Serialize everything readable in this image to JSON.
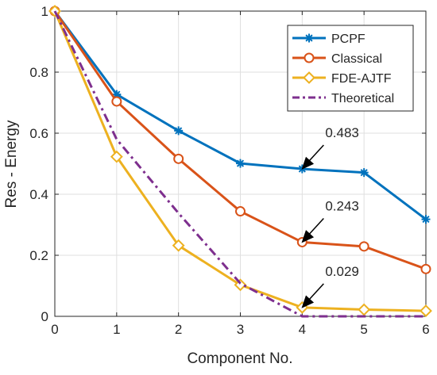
{
  "chart_data": {
    "type": "line",
    "title": "",
    "xlabel": "Component No.",
    "ylabel": "Res - Energy",
    "xlim": [
      0,
      6
    ],
    "ylim": [
      0,
      1
    ],
    "grid": true,
    "legend_position": "top-right",
    "x": [
      0,
      1,
      2,
      3,
      4,
      5,
      6
    ],
    "x_ticks": [
      "0",
      "1",
      "2",
      "3",
      "4",
      "5",
      "6"
    ],
    "y_ticks": [
      "0",
      "0.2",
      "0.4",
      "0.6",
      "0.8",
      "1"
    ],
    "series": [
      {
        "name": "PCPF",
        "color": "#0072BD",
        "marker": "asterisk",
        "line_style": "solid",
        "values": [
          1.0,
          0.727,
          0.608,
          0.501,
          0.483,
          0.471,
          0.318
        ]
      },
      {
        "name": "Classical",
        "color": "#D95319",
        "marker": "circle",
        "line_style": "solid",
        "values": [
          1.0,
          0.704,
          0.516,
          0.344,
          0.243,
          0.229,
          0.155
        ]
      },
      {
        "name": "FDE-AJTF",
        "color": "#EDB120",
        "marker": "diamond",
        "line_style": "solid",
        "values": [
          1.0,
          0.523,
          0.232,
          0.103,
          0.029,
          0.022,
          0.018
        ]
      },
      {
        "name": "Theoretical",
        "color": "#7E2F8E",
        "marker": "none",
        "line_style": "dash-dot",
        "values": [
          1.0,
          0.58,
          0.338,
          0.108,
          0.0,
          0.0,
          0.0
        ]
      }
    ],
    "annotations": [
      {
        "text": "0.483",
        "x": 4,
        "y": 0.483,
        "series": "PCPF"
      },
      {
        "text": "0.243",
        "x": 4,
        "y": 0.243,
        "series": "Classical"
      },
      {
        "text": "0.029",
        "x": 4,
        "y": 0.029,
        "series": "FDE-AJTF"
      }
    ]
  }
}
